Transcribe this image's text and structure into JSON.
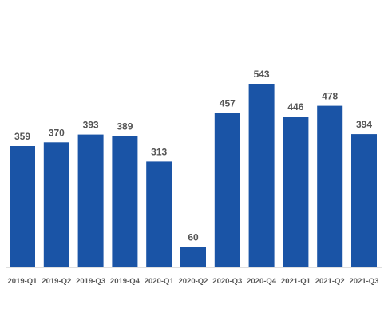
{
  "chart_data": {
    "type": "bar",
    "categories": [
      "2019-Q1",
      "2019-Q2",
      "2019-Q3",
      "2019-Q4",
      "2020-Q1",
      "2020-Q2",
      "2020-Q3",
      "2020-Q4",
      "2021-Q1",
      "2021-Q2",
      "2021-Q3"
    ],
    "values": [
      359,
      370,
      393,
      389,
      313,
      60,
      457,
      543,
      446,
      478,
      394
    ],
    "data_labels": [
      "359",
      "370",
      "393",
      "389",
      "313",
      "60",
      "457",
      "543",
      "446",
      "478",
      "394"
    ],
    "title": "",
    "xlabel": "",
    "ylabel": "",
    "ylim": [
      0,
      600
    ],
    "grid": false,
    "legend": "none",
    "colors": {
      "bar": "#1a54a6",
      "axis": "#bfbfbf",
      "label": "#555555"
    }
  }
}
